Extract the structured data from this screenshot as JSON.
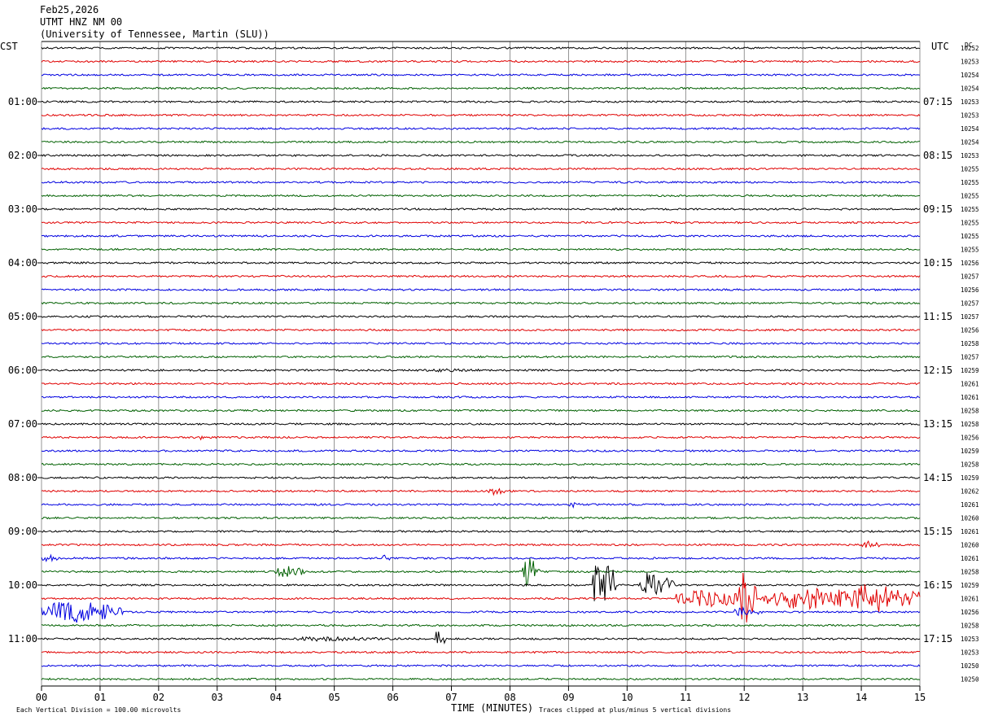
{
  "header": {
    "date": "Feb25,2026",
    "station": "UTMT HNZ NM 00",
    "institution": "(University of Tennessee, Martin (SLU))"
  },
  "left_axis_label": "CST",
  "right_axis_label": "UTC",
  "dc_label": "DC",
  "x_axis_title": "TIME (MINUTES)",
  "footer": {
    "scale_note": "Each Vertical Division =  100.00 microvolts",
    "clip_note": "Traces clipped at plus/minus 5 vertical divisions"
  },
  "colors": {
    "trace_cycle": [
      "#000000",
      "#e00000",
      "#0000e0",
      "#006000"
    ],
    "grid": "#666666"
  },
  "chart_data": {
    "type": "line",
    "x_range": [
      0,
      15
    ],
    "x_ticks": [
      "00",
      "01",
      "02",
      "03",
      "04",
      "05",
      "06",
      "07",
      "08",
      "09",
      "10",
      "11",
      "12",
      "13",
      "14",
      "15"
    ],
    "rows": 48,
    "row_minutes": 15,
    "left_hour_labels": [
      "01:00",
      "02:00",
      "03:00",
      "04:00",
      "05:00",
      "06:00",
      "07:00",
      "08:00",
      "09:00",
      "10:00",
      "11:00"
    ],
    "right_hour_labels": [
      "07:15",
      "08:15",
      "09:15",
      "10:15",
      "11:15",
      "12:15",
      "13:15",
      "14:15",
      "15:15",
      "16:15",
      "17:15"
    ],
    "dc_values": [
      "10252",
      "10253",
      "10254",
      "10254",
      "10253",
      "10253",
      "10254",
      "10254",
      "10253",
      "10255",
      "10255",
      "10255",
      "10255",
      "10255",
      "10255",
      "10255",
      "10256",
      "10257",
      "10256",
      "10257",
      "10257",
      "10256",
      "10258",
      "10257",
      "10259",
      "10261",
      "10261",
      "10258",
      "10258",
      "10256",
      "10259",
      "10258",
      "10259",
      "10262",
      "10261",
      "10260",
      "10261",
      "10260",
      "10261",
      "10258",
      "10259",
      "10261",
      "10256",
      "10258",
      "10253",
      "10253",
      "10250",
      "10250"
    ],
    "events": [
      {
        "row": 24,
        "start": 6.4,
        "end": 8.0,
        "amp": 2
      },
      {
        "row": 29,
        "start": 2.7,
        "end": 2.8,
        "amp": 6
      },
      {
        "row": 33,
        "start": 7.6,
        "end": 8.0,
        "amp": 5
      },
      {
        "row": 34,
        "start": 9.0,
        "end": 9.2,
        "amp": 4
      },
      {
        "row": 37,
        "start": 14.0,
        "end": 14.3,
        "amp": 6
      },
      {
        "row": 38,
        "start": 0.0,
        "end": 0.3,
        "amp": 5
      },
      {
        "row": 38,
        "start": 5.8,
        "end": 6.0,
        "amp": 4
      },
      {
        "row": 39,
        "start": 4.0,
        "end": 4.5,
        "amp": 8
      },
      {
        "row": 39,
        "start": 8.2,
        "end": 8.5,
        "amp": 20
      },
      {
        "row": 40,
        "start": 9.4,
        "end": 9.8,
        "amp": 42
      },
      {
        "row": 40,
        "start": 10.2,
        "end": 10.8,
        "amp": 16
      },
      {
        "row": 41,
        "start": 10.8,
        "end": 12.3,
        "amp": 12
      },
      {
        "row": 41,
        "start": 11.9,
        "end": 12.2,
        "amp": 38
      },
      {
        "row": 41,
        "start": 12.3,
        "end": 15.0,
        "amp": 14
      },
      {
        "row": 41,
        "start": 13.7,
        "end": 15.0,
        "amp": 20
      },
      {
        "row": 42,
        "start": 0.0,
        "end": 1.4,
        "amp": 16
      },
      {
        "row": 42,
        "start": 11.8,
        "end": 12.3,
        "amp": 6
      },
      {
        "row": 44,
        "start": 4.2,
        "end": 6.0,
        "amp": 3
      },
      {
        "row": 44,
        "start": 6.7,
        "end": 6.9,
        "amp": 12
      }
    ]
  }
}
